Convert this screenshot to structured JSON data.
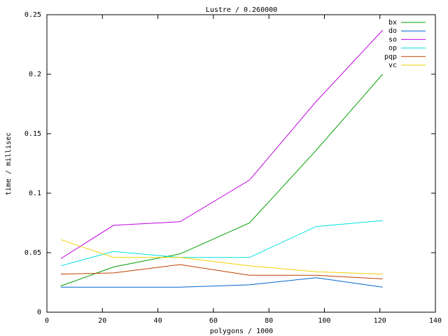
{
  "chart_data": {
    "type": "line",
    "title": "Lustre / 0.260000",
    "x_label": "polygons / 1000",
    "y_label": "time / millisec",
    "x": [
      5,
      24,
      48,
      73,
      97,
      121
    ],
    "series": [
      {
        "name": "bx",
        "color": "#00a000",
        "values": [
          0.022,
          0.038,
          0.049,
          0.075,
          0.136,
          0.2
        ]
      },
      {
        "name": "do",
        "color": "#0066cc",
        "values": [
          0.021,
          0.021,
          0.021,
          0.023,
          0.029,
          0.021
        ]
      },
      {
        "name": "so",
        "color": "#c000e0",
        "values": [
          0.045,
          0.073,
          0.076,
          0.111,
          0.177,
          0.237
        ]
      },
      {
        "name": "op",
        "color": "#00e0e0",
        "values": [
          0.039,
          0.051,
          0.046,
          0.046,
          0.072,
          0.077
        ]
      },
      {
        "name": "pqp",
        "color": "#c04000",
        "values": [
          0.032,
          0.033,
          0.04,
          0.031,
          0.031,
          0.028
        ]
      },
      {
        "name": "vc",
        "color": "#f0d000",
        "values": [
          0.061,
          0.046,
          0.046,
          0.039,
          0.034,
          0.032
        ]
      }
    ],
    "xlim": [
      0,
      140
    ],
    "xticks": [
      0,
      20,
      40,
      60,
      80,
      100,
      120,
      140
    ],
    "ylim": [
      0,
      0.25
    ],
    "yticks": [
      0,
      0.05,
      0.1,
      0.15,
      0.2,
      0.25
    ],
    "grid": false,
    "legend": "top-right"
  }
}
